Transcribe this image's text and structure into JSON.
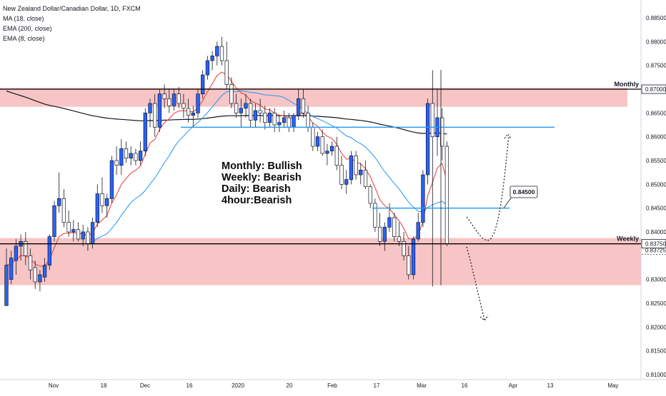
{
  "legend": {
    "symbol": "New Zealand Dollar/Canadian Dollar, 1D, FXCM",
    "indicators": [
      "MA (18, close)",
      "EMA (200, close)",
      "EMA (8, close)"
    ]
  },
  "analysis_lines": [
    "Monthly: Bullish",
    "Weekly: Bearish",
    "Daily: Bearish",
    "4hour:Bearish"
  ],
  "labels": {
    "monthly": "Monthly",
    "weekly": "Weekly",
    "callout": "0.84500",
    "price_monthly": "0.87000",
    "price_weekly": "0.83750",
    "price_current": "0.83725"
  },
  "colors": {
    "up": "#2962ff",
    "down": "#ffffff",
    "wick": "#131722",
    "zone": "#f7c5c5",
    "ma18": "#2196f3",
    "ema200": "#131722",
    "ema8": "#e53935",
    "hline": "#2196f3",
    "key_level": "#000000"
  },
  "chart_data": {
    "type": "candlestick",
    "title": "New Zealand Dollar/Canadian Dollar, 1D, FXCM",
    "y_axis": {
      "min": 0.81,
      "max": 0.885,
      "side": "right",
      "ticks": [
        "0.88500",
        "0.88000",
        "0.87500",
        "0.87000",
        "0.86500",
        "0.86000",
        "0.85500",
        "0.85000",
        "0.84500",
        "0.84000",
        "0.83750",
        "0.83725",
        "0.83000",
        "0.82500",
        "0.82000",
        "0.81500",
        "0.81000"
      ]
    },
    "x_axis": {
      "ticks": [
        "Nov",
        "18",
        "Dec",
        "16",
        "2020",
        "20",
        "Feb",
        "17",
        "Mar",
        "16",
        "Apr",
        "13",
        "May"
      ]
    },
    "zones": [
      {
        "name": "Monthly",
        "from": 0.8663,
        "to": 0.8703
      },
      {
        "name": "Weekly",
        "from": 0.8288,
        "to": 0.8387
      }
    ],
    "key_levels": [
      0.87,
      0.8375
    ],
    "blue_lines": [
      0.862,
      0.845
    ],
    "candles": [
      [
        0.8245,
        0.8365,
        0.8245,
        0.833
      ],
      [
        0.83,
        0.836,
        0.829,
        0.8345
      ],
      [
        0.834,
        0.8385,
        0.831,
        0.837
      ],
      [
        0.837,
        0.8395,
        0.834,
        0.838
      ],
      [
        0.838,
        0.84,
        0.833,
        0.835
      ],
      [
        0.835,
        0.8365,
        0.83,
        0.832
      ],
      [
        0.8325,
        0.834,
        0.828,
        0.8295
      ],
      [
        0.8295,
        0.832,
        0.8275,
        0.831
      ],
      [
        0.8305,
        0.8345,
        0.8295,
        0.833
      ],
      [
        0.833,
        0.8395,
        0.832,
        0.839
      ],
      [
        0.839,
        0.8465,
        0.838,
        0.8455
      ],
      [
        0.8455,
        0.8525,
        0.844,
        0.847
      ],
      [
        0.847,
        0.849,
        0.841,
        0.842
      ],
      [
        0.842,
        0.8445,
        0.839,
        0.84
      ],
      [
        0.84,
        0.8425,
        0.838,
        0.8405
      ],
      [
        0.8405,
        0.842,
        0.838,
        0.8385
      ],
      [
        0.8385,
        0.8415,
        0.837,
        0.84
      ],
      [
        0.84,
        0.841,
        0.836,
        0.8375
      ],
      [
        0.8375,
        0.843,
        0.8365,
        0.842
      ],
      [
        0.842,
        0.85,
        0.841,
        0.848
      ],
      [
        0.848,
        0.8515,
        0.844,
        0.8455
      ],
      [
        0.8455,
        0.848,
        0.843,
        0.847
      ],
      [
        0.847,
        0.856,
        0.846,
        0.855
      ],
      [
        0.855,
        0.858,
        0.852,
        0.854
      ],
      [
        0.854,
        0.8595,
        0.852,
        0.8575
      ],
      [
        0.8575,
        0.859,
        0.8545,
        0.8555
      ],
      [
        0.8555,
        0.858,
        0.854,
        0.8565
      ],
      [
        0.8565,
        0.8575,
        0.854,
        0.855
      ],
      [
        0.855,
        0.859,
        0.854,
        0.857
      ],
      [
        0.857,
        0.866,
        0.856,
        0.865
      ],
      [
        0.865,
        0.868,
        0.862,
        0.867
      ],
      [
        0.867,
        0.869,
        0.86,
        0.862
      ],
      [
        0.862,
        0.87,
        0.861,
        0.869
      ],
      [
        0.869,
        0.871,
        0.866,
        0.868
      ],
      [
        0.868,
        0.87,
        0.865,
        0.8665
      ],
      [
        0.8665,
        0.87,
        0.8655,
        0.869
      ],
      [
        0.869,
        0.8705,
        0.866,
        0.867
      ],
      [
        0.867,
        0.869,
        0.864,
        0.866
      ],
      [
        0.866,
        0.868,
        0.863,
        0.8645
      ],
      [
        0.8645,
        0.8665,
        0.862,
        0.865
      ],
      [
        0.865,
        0.87,
        0.864,
        0.869
      ],
      [
        0.869,
        0.874,
        0.868,
        0.873
      ],
      [
        0.873,
        0.877,
        0.872,
        0.876
      ],
      [
        0.876,
        0.878,
        0.874,
        0.877
      ],
      [
        0.877,
        0.88,
        0.875,
        0.879
      ],
      [
        0.879,
        0.881,
        0.875,
        0.876
      ],
      [
        0.876,
        0.88,
        0.87,
        0.871
      ],
      [
        0.871,
        0.8725,
        0.866,
        0.867
      ],
      [
        0.867,
        0.869,
        0.864,
        0.865
      ],
      [
        0.865,
        0.868,
        0.862,
        0.866
      ],
      [
        0.866,
        0.869,
        0.864,
        0.867
      ],
      [
        0.867,
        0.868,
        0.862,
        0.8635
      ],
      [
        0.8635,
        0.867,
        0.862,
        0.8655
      ],
      [
        0.8655,
        0.868,
        0.863,
        0.865
      ],
      [
        0.865,
        0.8665,
        0.8615,
        0.863
      ],
      [
        0.863,
        0.866,
        0.862,
        0.865
      ],
      [
        0.865,
        0.866,
        0.861,
        0.8625
      ],
      [
        0.8625,
        0.8645,
        0.861,
        0.863
      ],
      [
        0.863,
        0.8655,
        0.862,
        0.864
      ],
      [
        0.864,
        0.865,
        0.861,
        0.862
      ],
      [
        0.862,
        0.865,
        0.861,
        0.8645
      ],
      [
        0.8645,
        0.87,
        0.8635,
        0.868
      ],
      [
        0.868,
        0.87,
        0.864,
        0.865
      ],
      [
        0.865,
        0.8665,
        0.861,
        0.862
      ],
      [
        0.862,
        0.863,
        0.857,
        0.858
      ],
      [
        0.858,
        0.861,
        0.857,
        0.86
      ],
      [
        0.86,
        0.8615,
        0.856,
        0.8565
      ],
      [
        0.8565,
        0.8585,
        0.854,
        0.857
      ],
      [
        0.857,
        0.859,
        0.856,
        0.858
      ],
      [
        0.858,
        0.86,
        0.853,
        0.854
      ],
      [
        0.854,
        0.856,
        0.849,
        0.85
      ],
      [
        0.85,
        0.853,
        0.848,
        0.851
      ],
      [
        0.851,
        0.857,
        0.85,
        0.856
      ],
      [
        0.856,
        0.857,
        0.851,
        0.852
      ],
      [
        0.852,
        0.8545,
        0.85,
        0.853
      ],
      [
        0.853,
        0.855,
        0.849,
        0.8495
      ],
      [
        0.8495,
        0.85,
        0.845,
        0.846
      ],
      [
        0.846,
        0.847,
        0.84,
        0.841
      ],
      [
        0.841,
        0.844,
        0.837,
        0.838
      ],
      [
        0.838,
        0.842,
        0.836,
        0.841
      ],
      [
        0.841,
        0.846,
        0.84,
        0.843
      ],
      [
        0.843,
        0.844,
        0.838,
        0.839
      ],
      [
        0.839,
        0.842,
        0.837,
        0.838
      ],
      [
        0.838,
        0.84,
        0.834,
        0.835
      ],
      [
        0.835,
        0.837,
        0.83,
        0.831
      ],
      [
        0.831,
        0.839,
        0.83,
        0.8385
      ],
      [
        0.8385,
        0.844,
        0.838,
        0.842
      ],
      [
        0.842,
        0.853,
        0.841,
        0.852
      ],
      [
        0.852,
        0.868,
        0.85,
        0.867
      ],
      [
        0.867,
        0.874,
        0.8285,
        0.86
      ],
      [
        0.86,
        0.87,
        0.856,
        0.864
      ],
      [
        0.864,
        0.866,
        0.855,
        0.858
      ],
      [
        0.858,
        0.859,
        0.837,
        0.8375
      ]
    ]
  }
}
